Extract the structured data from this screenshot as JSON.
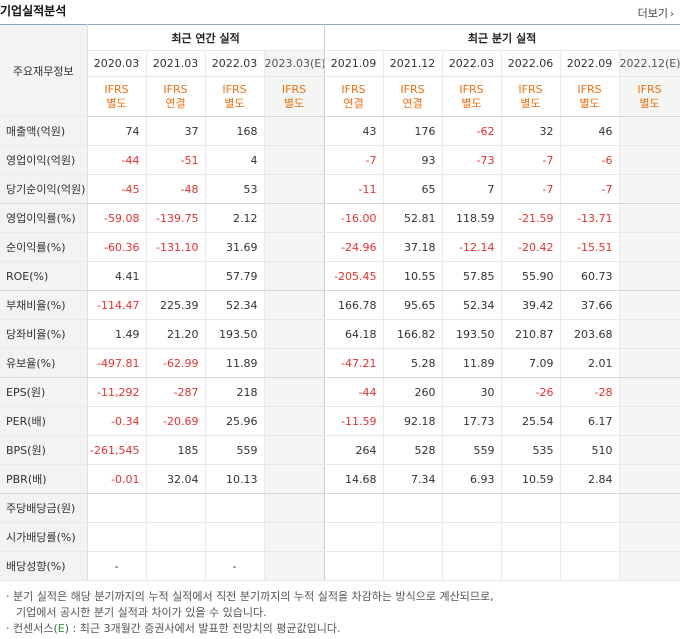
{
  "header": {
    "title": "기업실적분석",
    "more_label": "더보기"
  },
  "table": {
    "corner_label": "주요재무정보",
    "annual_title": "최근 연간 실적",
    "quarter_title": "최근 분기 실적",
    "annual_periods": [
      "2020.03",
      "2021.03",
      "2022.03",
      "2023.03(E)"
    ],
    "annual_types": [
      [
        "IFRS",
        "별도"
      ],
      [
        "IFRS",
        "연결"
      ],
      [
        "IFRS",
        "별도"
      ],
      [
        "IFRS",
        "별도"
      ]
    ],
    "quarter_periods": [
      "2021.09",
      "2021.12",
      "2022.03",
      "2022.06",
      "2022.09",
      "2022.12(E)"
    ],
    "quarter_types": [
      [
        "IFRS",
        "연결"
      ],
      [
        "IFRS",
        "연결"
      ],
      [
        "IFRS",
        "별도"
      ],
      [
        "IFRS",
        "별도"
      ],
      [
        "IFRS",
        "별도"
      ],
      [
        "IFRS",
        "별도"
      ]
    ],
    "rows": [
      {
        "label": "매출액(억원)",
        "annual": [
          "74",
          "37",
          "168",
          ""
        ],
        "quarter": [
          "43",
          "176",
          "-62",
          "32",
          "46",
          ""
        ]
      },
      {
        "label": "영업이익(억원)",
        "annual": [
          "-44",
          "-51",
          "4",
          ""
        ],
        "quarter": [
          "-7",
          "93",
          "-73",
          "-7",
          "-6",
          ""
        ]
      },
      {
        "label": "당기순이익(억원)",
        "annual": [
          "-45",
          "-48",
          "53",
          ""
        ],
        "quarter": [
          "-11",
          "65",
          "7",
          "-7",
          "-7",
          ""
        ]
      },
      {
        "label": "영업이익률(%)",
        "annual": [
          "-59.08",
          "-139.75",
          "2.12",
          ""
        ],
        "quarter": [
          "-16.00",
          "52.81",
          "118.59",
          "-21.59",
          "-13.71",
          ""
        ]
      },
      {
        "label": "순이익률(%)",
        "annual": [
          "-60.36",
          "-131.10",
          "31.69",
          ""
        ],
        "quarter": [
          "-24.96",
          "37.18",
          "-12.14",
          "-20.42",
          "-15.51",
          ""
        ]
      },
      {
        "label": "ROE(%)",
        "annual": [
          "4.41",
          "",
          "57.79",
          ""
        ],
        "quarter": [
          "-205.45",
          "10.55",
          "57.85",
          "55.90",
          "60.73",
          ""
        ]
      },
      {
        "label": "부채비율(%)",
        "annual": [
          "-114.47",
          "225.39",
          "52.34",
          ""
        ],
        "quarter": [
          "166.78",
          "95.65",
          "52.34",
          "39.42",
          "37.66",
          ""
        ]
      },
      {
        "label": "당좌비율(%)",
        "annual": [
          "1.49",
          "21.20",
          "193.50",
          ""
        ],
        "quarter": [
          "64.18",
          "166.82",
          "193.50",
          "210.87",
          "203.68",
          ""
        ]
      },
      {
        "label": "유보율(%)",
        "annual": [
          "-497.81",
          "-62.99",
          "11.89",
          ""
        ],
        "quarter": [
          "-47.21",
          "5.28",
          "11.89",
          "7.09",
          "2.01",
          ""
        ]
      },
      {
        "label": "EPS(원)",
        "annual": [
          "-11,292",
          "-287",
          "218",
          ""
        ],
        "quarter": [
          "-44",
          "260",
          "30",
          "-26",
          "-28",
          ""
        ]
      },
      {
        "label": "PER(배)",
        "annual": [
          "-0.34",
          "-20.69",
          "25.96",
          ""
        ],
        "quarter": [
          "-11.59",
          "92.18",
          "17.73",
          "25.54",
          "6.17",
          ""
        ]
      },
      {
        "label": "BPS(원)",
        "annual": [
          "-261,545",
          "185",
          "559",
          ""
        ],
        "quarter": [
          "264",
          "528",
          "559",
          "535",
          "510",
          ""
        ]
      },
      {
        "label": "PBR(배)",
        "annual": [
          "-0.01",
          "32.04",
          "10.13",
          ""
        ],
        "quarter": [
          "14.68",
          "7.34",
          "6.93",
          "10.59",
          "2.84",
          ""
        ]
      },
      {
        "label": "주당배당금(원)",
        "annual": [
          "",
          "",
          "",
          ""
        ],
        "quarter": [
          "",
          "",
          "",
          "",
          "",
          ""
        ]
      },
      {
        "label": "시가배당률(%)",
        "annual": [
          "",
          "",
          "",
          ""
        ],
        "quarter": [
          "",
          "",
          "",
          "",
          "",
          ""
        ]
      },
      {
        "label": "배당성향(%)",
        "annual": [
          "-",
          "",
          "-",
          ""
        ],
        "quarter": [
          "",
          "",
          "",
          "",
          "",
          ""
        ]
      }
    ]
  },
  "notes": {
    "line1": "· 분기 실적은 해당 분기까지의 누적 실적에서 직전 분기까지의 누적 실적을 차감하는 방식으로 계산되므로,",
    "line2": "기업에서 공시한 분기 실적과 차이가 있을 수 있습니다.",
    "line3_prefix": "· 컨센서스(",
    "line3_e": "E",
    "line3_suffix": ") : 최근 3개월간 증권사에서 발표한 전망치의 평균값입니다."
  },
  "colors": {
    "negative": "#e8312e",
    "ifrs": "#f27010",
    "estimate_bg": "#f3f6f3"
  }
}
